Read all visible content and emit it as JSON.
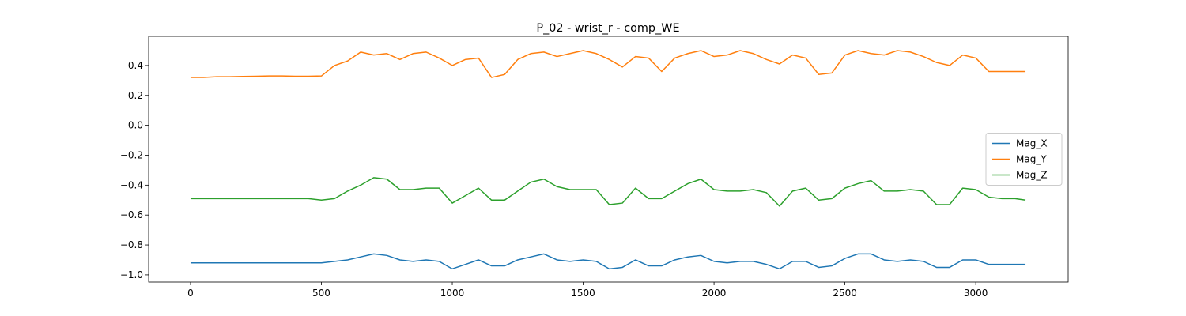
{
  "chart_data": {
    "type": "line",
    "title": "P_02 - wrist_r - comp_WE",
    "x": [
      0,
      50,
      100,
      150,
      200,
      250,
      300,
      350,
      400,
      450,
      500,
      550,
      600,
      650,
      700,
      750,
      800,
      850,
      900,
      950,
      1000,
      1050,
      1100,
      1150,
      1200,
      1250,
      1300,
      1350,
      1400,
      1450,
      1500,
      1550,
      1600,
      1650,
      1700,
      1750,
      1800,
      1850,
      1900,
      1950,
      2000,
      2050,
      2100,
      2150,
      2200,
      2250,
      2300,
      2350,
      2400,
      2450,
      2500,
      2550,
      2600,
      2650,
      2700,
      2750,
      2800,
      2850,
      2900,
      2950,
      3000,
      3050,
      3100,
      3150,
      3190
    ],
    "series": [
      {
        "name": "Mag_X",
        "color": "#1f77b4",
        "values": [
          -0.92,
          -0.92,
          -0.92,
          -0.92,
          -0.92,
          -0.92,
          -0.92,
          -0.92,
          -0.92,
          -0.92,
          -0.92,
          -0.91,
          -0.9,
          -0.88,
          -0.86,
          -0.87,
          -0.9,
          -0.91,
          -0.9,
          -0.91,
          -0.96,
          -0.93,
          -0.9,
          -0.94,
          -0.94,
          -0.9,
          -0.88,
          -0.86,
          -0.9,
          -0.91,
          -0.9,
          -0.91,
          -0.96,
          -0.95,
          -0.9,
          -0.94,
          -0.94,
          -0.9,
          -0.88,
          -0.87,
          -0.91,
          -0.92,
          -0.91,
          -0.91,
          -0.93,
          -0.96,
          -0.91,
          -0.91,
          -0.95,
          -0.94,
          -0.89,
          -0.86,
          -0.86,
          -0.9,
          -0.91,
          -0.9,
          -0.91,
          -0.95,
          -0.95,
          -0.9,
          -0.9,
          -0.93,
          -0.93,
          -0.93,
          -0.93
        ]
      },
      {
        "name": "Mag_Y",
        "color": "#ff7f0e",
        "values": [
          0.32,
          0.32,
          0.325,
          0.325,
          0.327,
          0.328,
          0.33,
          0.33,
          0.328,
          0.328,
          0.33,
          0.4,
          0.43,
          0.49,
          0.47,
          0.48,
          0.44,
          0.48,
          0.49,
          0.45,
          0.4,
          0.44,
          0.45,
          0.32,
          0.34,
          0.44,
          0.48,
          0.49,
          0.46,
          0.48,
          0.5,
          0.48,
          0.44,
          0.39,
          0.46,
          0.45,
          0.36,
          0.45,
          0.48,
          0.5,
          0.46,
          0.47,
          0.5,
          0.48,
          0.44,
          0.41,
          0.47,
          0.45,
          0.34,
          0.35,
          0.47,
          0.5,
          0.48,
          0.47,
          0.5,
          0.49,
          0.46,
          0.42,
          0.4,
          0.47,
          0.45,
          0.36,
          0.36,
          0.36,
          0.36
        ]
      },
      {
        "name": "Mag_Z",
        "color": "#2ca02c",
        "values": [
          -0.49,
          -0.49,
          -0.49,
          -0.49,
          -0.49,
          -0.49,
          -0.49,
          -0.49,
          -0.49,
          -0.49,
          -0.5,
          -0.49,
          -0.44,
          -0.4,
          -0.35,
          -0.36,
          -0.43,
          -0.43,
          -0.42,
          -0.42,
          -0.52,
          -0.47,
          -0.42,
          -0.5,
          -0.5,
          -0.44,
          -0.38,
          -0.36,
          -0.41,
          -0.43,
          -0.43,
          -0.43,
          -0.53,
          -0.52,
          -0.42,
          -0.49,
          -0.49,
          -0.44,
          -0.39,
          -0.36,
          -0.43,
          -0.44,
          -0.44,
          -0.43,
          -0.45,
          -0.54,
          -0.44,
          -0.42,
          -0.5,
          -0.49,
          -0.42,
          -0.39,
          -0.37,
          -0.44,
          -0.44,
          -0.43,
          -0.44,
          -0.53,
          -0.53,
          -0.42,
          -0.43,
          -0.48,
          -0.49,
          -0.49,
          -0.5
        ]
      }
    ],
    "xlim": [
      -160,
      3353
    ],
    "xticks": [
      0,
      500,
      1000,
      1500,
      2000,
      2500,
      3000
    ],
    "ylim": [
      -1.048,
      0.595
    ],
    "yticks": [
      {
        "value": -1.0,
        "label": "−1.0"
      },
      {
        "value": -0.8,
        "label": "−0.8"
      },
      {
        "value": -0.6,
        "label": "−0.6"
      },
      {
        "value": -0.4,
        "label": "−0.4"
      },
      {
        "value": -0.2,
        "label": "−0.2"
      },
      {
        "value": 0,
        "label": "0.0"
      },
      0.2,
      0.4
    ],
    "legend": "center right"
  }
}
